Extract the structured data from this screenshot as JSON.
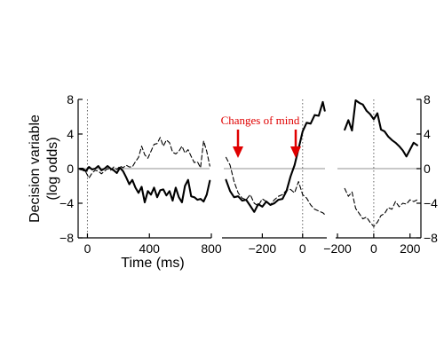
{
  "chart_data": [
    {
      "type": "line",
      "panel": "left",
      "xlabel": "Time (ms)",
      "ylabel": "Decision variable",
      "ylabel2": "(log odds)",
      "xlim": [
        -60,
        800
      ],
      "ylim": [
        -8,
        8
      ],
      "xticks": [
        0,
        400,
        800
      ],
      "xtick_labels": [
        "0",
        "400",
        "800"
      ],
      "yticks": [
        8,
        4,
        0,
        -4,
        -8
      ],
      "ytick_labels": [
        "8",
        "4",
        "0",
        "−4",
        "−8"
      ],
      "zero_line": "y",
      "vline_x": 0,
      "series": [
        {
          "style": "solid",
          "x": [
            -50,
            -30,
            -10,
            10,
            30,
            50,
            70,
            90,
            110,
            130,
            150,
            170,
            190,
            210,
            230,
            250,
            270,
            290,
            310,
            330,
            350,
            370,
            390,
            410,
            430,
            450,
            470,
            490,
            510,
            530,
            550,
            570,
            590,
            610,
            630,
            650,
            670,
            690,
            710,
            730,
            750,
            770,
            790
          ],
          "y": [
            0,
            0,
            -0.3,
            0.2,
            -0.1,
            0,
            0.3,
            -0.2,
            0,
            0.3,
            0,
            -0.2,
            -0.5,
            0.1,
            -0.3,
            -1.0,
            -1.8,
            -1.3,
            -2.2,
            -2.8,
            -2.1,
            -3.9,
            -2.6,
            -3.0,
            -2.2,
            -3.3,
            -2.5,
            -2.4,
            -3.1,
            -2.6,
            -3.7,
            -2.2,
            -3.3,
            -3.9,
            -2.0,
            -1.3,
            -3.2,
            -3.3,
            -3.6,
            -3.5,
            -3.8,
            -3.0,
            -1.4
          ]
        },
        {
          "style": "dashed",
          "x": [
            -50,
            -30,
            -10,
            10,
            30,
            50,
            70,
            90,
            110,
            130,
            150,
            170,
            190,
            210,
            230,
            250,
            270,
            290,
            310,
            330,
            350,
            370,
            390,
            410,
            430,
            450,
            470,
            490,
            510,
            530,
            550,
            570,
            590,
            610,
            630,
            650,
            670,
            690,
            710,
            730,
            750,
            770,
            790
          ],
          "y": [
            -0.1,
            -0.2,
            -0.4,
            -1.1,
            -0.5,
            -0.2,
            -0.3,
            -0.6,
            -0.3,
            0,
            -0.2,
            0.2,
            -0.1,
            0.3,
            0.1,
            0.4,
            0.2,
            0.2,
            0.8,
            1.3,
            2.6,
            1.6,
            1.2,
            2.0,
            2.8,
            2.9,
            3.6,
            2.6,
            3.3,
            3.0,
            1.9,
            1.7,
            2.0,
            2.6,
            1.8,
            2.2,
            1.4,
            0.7,
            0.8,
            0.1,
            3.2,
            2.0,
            0.3
          ]
        }
      ]
    },
    {
      "type": "line",
      "panel": "middle",
      "xlim": [
        -400,
        120
      ],
      "ylim": [
        -8,
        8
      ],
      "xticks": [
        -200,
        0
      ],
      "xtick_labels": [
        "−200",
        "0"
      ],
      "zero_line": "y",
      "vline_x": 0,
      "annotation": "Changes of mind",
      "series": [
        {
          "style": "solid",
          "x": [
            -380,
            -360,
            -340,
            -320,
            -300,
            -280,
            -260,
            -240,
            -220,
            -200,
            -180,
            -160,
            -140,
            -120,
            -100,
            -80,
            -60,
            -40,
            -20,
            0,
            20,
            40,
            60,
            80,
            100,
            110
          ],
          "y": [
            -1.3,
            -2.6,
            -3.3,
            -3.2,
            -3.7,
            -3.6,
            -4.3,
            -5.0,
            -4.1,
            -4.4,
            -3.8,
            -4.2,
            -4.0,
            -3.6,
            -3.5,
            -2.6,
            -0.9,
            0.4,
            2.3,
            4.3,
            5.3,
            5.2,
            6.2,
            6.1,
            7.7,
            6.7
          ]
        },
        {
          "style": "dashed",
          "x": [
            -380,
            -360,
            -340,
            -320,
            -300,
            -280,
            -260,
            -240,
            -220,
            -200,
            -180,
            -160,
            -140,
            -120,
            -100,
            -80,
            -60,
            -40,
            -20,
            0,
            20,
            40,
            60,
            80,
            100,
            110
          ],
          "y": [
            1.3,
            0.4,
            -1.5,
            -2.8,
            -3.4,
            -3.6,
            -3.0,
            -4.0,
            -4.3,
            -3.5,
            -3.8,
            -4.2,
            -3.6,
            -3.2,
            -3.0,
            -2.5,
            -2.4,
            -2.8,
            -1.5,
            -3.0,
            -3.4,
            -4.2,
            -4.7,
            -4.9,
            -5.1,
            -5.3
          ]
        }
      ]
    },
    {
      "type": "line",
      "panel": "right",
      "xlim": [
        -210,
        260
      ],
      "ylim": [
        -8,
        8
      ],
      "xticks": [
        -200,
        0,
        200
      ],
      "xtick_labels": [
        "−200",
        "0",
        "200"
      ],
      "yticks": [
        8,
        4,
        0,
        -4,
        -8
      ],
      "ytick_labels": [
        "8",
        "4",
        "0",
        "−4",
        "−8"
      ],
      "zero_line": "y",
      "vline_x": 0,
      "series": [
        {
          "style": "solid",
          "x": [
            -160,
            -140,
            -120,
            -100,
            -80,
            -60,
            -40,
            -20,
            0,
            20,
            40,
            60,
            80,
            100,
            120,
            140,
            160,
            180,
            200,
            220,
            240
          ],
          "y": [
            4.5,
            5.6,
            4.4,
            7.9,
            7.6,
            7.4,
            6.7,
            6.3,
            5.7,
            6.4,
            4.5,
            4.3,
            3.7,
            3.3,
            3.0,
            2.6,
            2.1,
            1.4,
            2.2,
            3.0,
            2.7
          ]
        },
        {
          "style": "dashed",
          "x": [
            -160,
            -140,
            -120,
            -100,
            -80,
            -60,
            -40,
            -20,
            0,
            20,
            40,
            60,
            80,
            100,
            120,
            140,
            160,
            180,
            200,
            220,
            240
          ],
          "y": [
            -2.3,
            -3.2,
            -2.7,
            -4.6,
            -5.2,
            -5.8,
            -5.6,
            -6.2,
            -6.7,
            -6.2,
            -5.4,
            -5.2,
            -4.5,
            -4.7,
            -3.8,
            -4.4,
            -4.0,
            -4.1,
            -3.6,
            -3.8,
            -3.6
          ]
        }
      ]
    }
  ]
}
